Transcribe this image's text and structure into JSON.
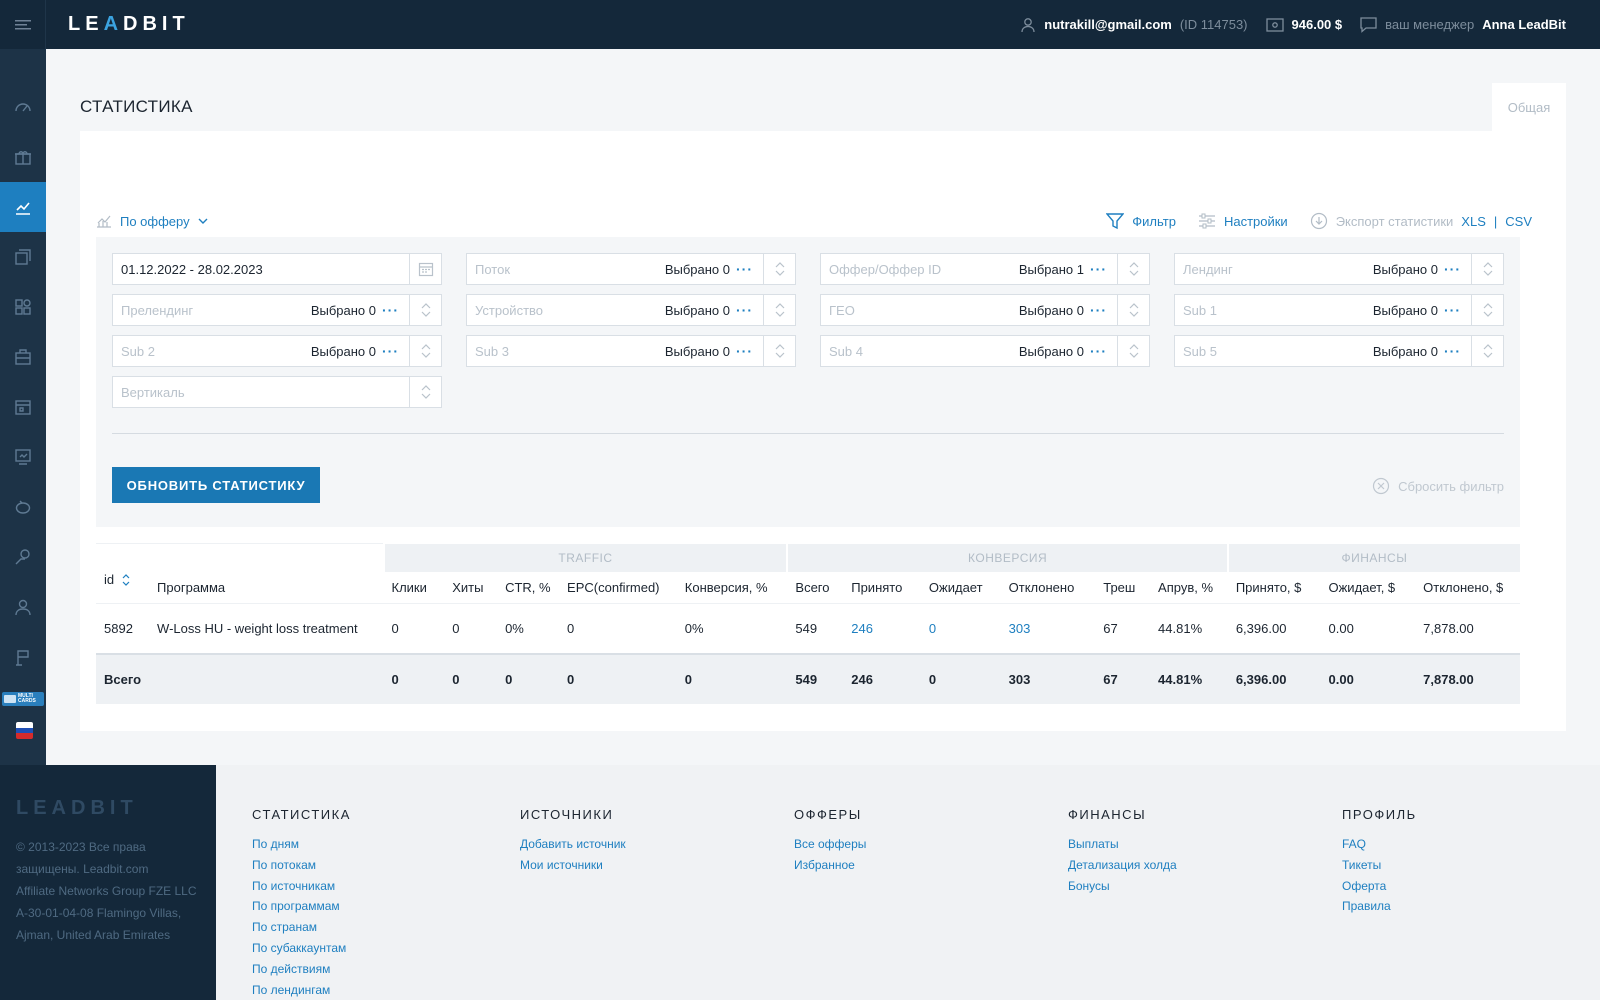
{
  "header": {
    "logo": "LEADBIT",
    "email": "nutrakill@gmail.com",
    "user_id": "(ID 114753)",
    "balance": "946.00 $",
    "manager_label": "ваш менеджер",
    "manager_name": "Anna LeadBit"
  },
  "sidebar": {
    "icons": [
      "dashboard-icon",
      "offers-icon",
      "stats-icon",
      "sources-icon",
      "apps-icon",
      "tools-icon",
      "calendar-icon",
      "monitor-icon",
      "piggy-bank-icon",
      "support-icon",
      "user-icon",
      "flag-icon"
    ],
    "active_index": 2,
    "multicards_label": "MULTI CARDS"
  },
  "page": {
    "title": "СТАТИСТИКА",
    "tab": "Общая",
    "group_by": "По офферу",
    "filter": "Фильтр",
    "settings": "Настройки",
    "export": "Экспорт статистики",
    "xls": "XLS",
    "separator": "|",
    "csv": "CSV"
  },
  "filters": {
    "date": "01.12.2022 - 28.02.2023",
    "fields": [
      {
        "placeholder": "Поток",
        "selected": "Выбрано 0"
      },
      {
        "placeholder": "Оффер/Оффер ID",
        "selected": "Выбрано 1"
      },
      {
        "placeholder": "Лендинг",
        "selected": "Выбрано 0"
      },
      {
        "placeholder": "Прелендинг",
        "selected": "Выбрано 0"
      },
      {
        "placeholder": "Устройство",
        "selected": "Выбрано 0"
      },
      {
        "placeholder": "ГЕО",
        "selected": "Выбрано 0"
      },
      {
        "placeholder": "Sub 1",
        "selected": "Выбрано 0"
      },
      {
        "placeholder": "Sub 2",
        "selected": "Выбрано 0"
      },
      {
        "placeholder": "Sub 3",
        "selected": "Выбрано 0"
      },
      {
        "placeholder": "Sub 4",
        "selected": "Выбрано 0"
      },
      {
        "placeholder": "Sub 5",
        "selected": "Выбрано 0"
      }
    ],
    "vertical_placeholder": "Вертикаль",
    "update_button": "ОБНОВИТЬ СТАТИСТИКУ",
    "reset": "Сбросить фильтр"
  },
  "table": {
    "groups": [
      "TRAFFIC",
      "КОНВЕРСИЯ",
      "ФИНАНСЫ"
    ],
    "columns": [
      "id",
      "Программа",
      "Клики",
      "Хиты",
      "CTR, %",
      "EPC(confirmed)",
      "Конверсия, %",
      "Всего",
      "Принято",
      "Ожидает",
      "Отклонено",
      "Треш",
      "Апрув, %",
      "Принято, $",
      "Ожидает, $",
      "Отклонено, $"
    ],
    "rows": [
      [
        "5892",
        "W-Loss HU - weight loss treatment",
        "0",
        "0",
        "0%",
        "0",
        "0%",
        "549",
        "246",
        "0",
        "303",
        "67",
        "44.81%",
        "6,396.00",
        "0.00",
        "7,878.00"
      ]
    ],
    "totals": [
      "Всего",
      "",
      "0",
      "0",
      "0",
      "0",
      "0",
      "549",
      "246",
      "0",
      "303",
      "67",
      "44.81%",
      "6,396.00",
      "0.00",
      "7,878.00"
    ]
  },
  "footer": {
    "logo": "LEADBIT",
    "copyright": [
      "© 2013-2023 Все права",
      "защищены. Leadbit.com",
      "Affiliate Networks Group FZE LLC",
      "A-30-01-04-08 Flamingo Villas,",
      "Ajman, United Arab Emirates"
    ],
    "columns": [
      {
        "title": "СТАТИСТИКА",
        "links": [
          "По дням",
          "По потокам",
          "По источникам",
          "По программам",
          "По странам",
          "По субаккаунтам",
          "По действиям",
          "По лендингам"
        ]
      },
      {
        "title": "ИСТОЧНИКИ",
        "links": [
          "Добавить источник",
          "Мои источники"
        ]
      },
      {
        "title": "ОФФЕРЫ",
        "links": [
          "Все офферы",
          "Избранное"
        ]
      },
      {
        "title": "ФИНАНСЫ",
        "links": [
          "Выплаты",
          "Детализация холда",
          "Бонусы"
        ]
      },
      {
        "title": "ПРОФИЛЬ",
        "links": [
          "FAQ",
          "Тикеты",
          "Оферта",
          "Правила"
        ]
      }
    ]
  }
}
